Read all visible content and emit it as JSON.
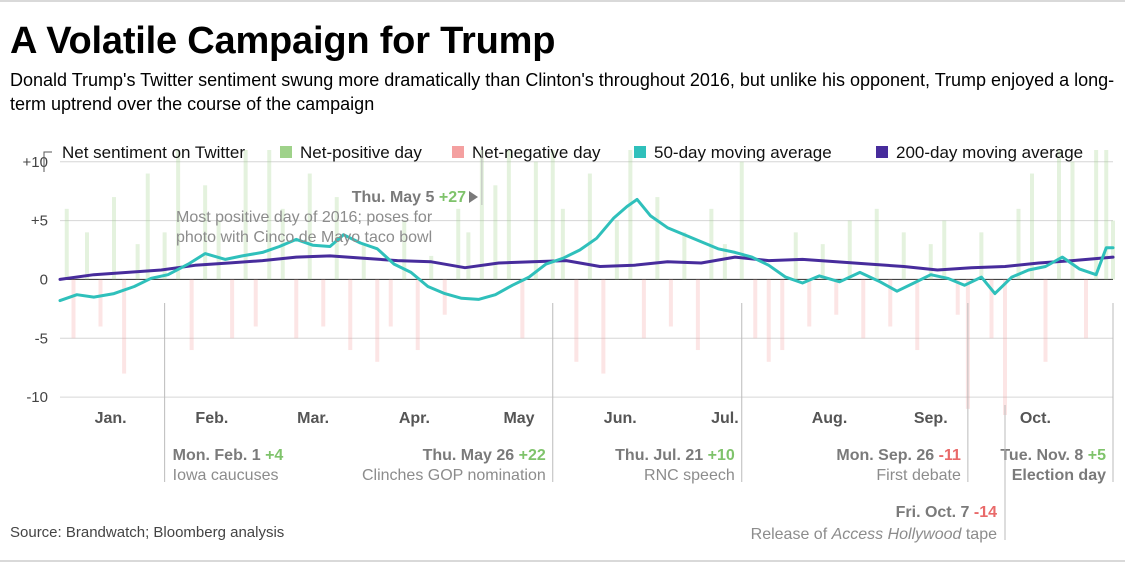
{
  "header": {
    "title": "A Volatile Campaign for Trump",
    "subtitle": "Donald Trump's Twitter sentiment swung more dramatically than Clinton's throughout 2016, but unlike his opponent, Trump enjoyed a long-term uptrend over the course of the campaign"
  },
  "footer": {
    "source": "Source: Brandwatch; Bloomberg analysis"
  },
  "legend": {
    "placement": "top",
    "items": [
      {
        "key": "net",
        "label": "Net sentiment on Twitter",
        "color": "#000000",
        "style": "bracket"
      },
      {
        "key": "pos",
        "label": "Net-positive day",
        "color": "#9fd28a",
        "style": "square"
      },
      {
        "key": "neg",
        "label": "Net-negative day",
        "color": "#f4a0a0",
        "style": "square"
      },
      {
        "key": "ma50",
        "label": "50-day moving average",
        "color": "#2fc0bb",
        "style": "square"
      },
      {
        "key": "ma200",
        "label": "200-day moving average",
        "color": "#472c9c",
        "style": "square"
      }
    ]
  },
  "chart_data": {
    "type": "bar",
    "overlay_type": "line",
    "x_start": "2016-01-01",
    "x_end": "2016-11-08",
    "ylim": [
      -10.5,
      11
    ],
    "yticks": [
      {
        "value": 10,
        "label": "+10"
      },
      {
        "value": 5,
        "label": "+5"
      },
      {
        "value": 0,
        "label": "0"
      },
      {
        "value": -5,
        "label": "-5"
      },
      {
        "value": -10,
        "label": "-10"
      }
    ],
    "grid": true,
    "month_labels": [
      {
        "label": "Jan.",
        "date": "2016-01-16"
      },
      {
        "label": "Feb.",
        "date": "2016-02-15"
      },
      {
        "label": "Mar.",
        "date": "2016-03-16"
      },
      {
        "label": "Apr.",
        "date": "2016-04-15"
      },
      {
        "label": "May",
        "date": "2016-05-16"
      },
      {
        "label": "Jun.",
        "date": "2016-06-15"
      },
      {
        "label": "Jul.",
        "date": "2016-07-16"
      },
      {
        "label": "Aug.",
        "date": "2016-08-16"
      },
      {
        "label": "Sep.",
        "date": "2016-09-15"
      },
      {
        "label": "Oct.",
        "date": "2016-10-16"
      }
    ],
    "colors": {
      "positive": "#9fd28a",
      "negative": "#f4a0a0",
      "ma50": "#2fc0bb",
      "ma200": "#472c9c",
      "annotation_value_pos": "#7fc36b",
      "annotation_value_neg": "#e96a6a"
    },
    "bar_opacity": 0.28,
    "daily_sample": [
      {
        "date": "2016-01-03",
        "value": 6
      },
      {
        "date": "2016-01-05",
        "value": -5
      },
      {
        "date": "2016-01-09",
        "value": 4
      },
      {
        "date": "2016-01-13",
        "value": -4
      },
      {
        "date": "2016-01-17",
        "value": 7
      },
      {
        "date": "2016-01-20",
        "value": -8
      },
      {
        "date": "2016-01-24",
        "value": 3
      },
      {
        "date": "2016-01-27",
        "value": 9
      },
      {
        "date": "2016-02-01",
        "value": 4
      },
      {
        "date": "2016-02-05",
        "value": 13
      },
      {
        "date": "2016-02-09",
        "value": -6
      },
      {
        "date": "2016-02-13",
        "value": 8
      },
      {
        "date": "2016-02-17",
        "value": 5
      },
      {
        "date": "2016-02-21",
        "value": -5
      },
      {
        "date": "2016-02-25",
        "value": 14
      },
      {
        "date": "2016-02-28",
        "value": -4
      },
      {
        "date": "2016-03-03",
        "value": 12
      },
      {
        "date": "2016-03-07",
        "value": 6
      },
      {
        "date": "2016-03-11",
        "value": -5
      },
      {
        "date": "2016-03-15",
        "value": 9
      },
      {
        "date": "2016-03-19",
        "value": -4
      },
      {
        "date": "2016-03-23",
        "value": 7
      },
      {
        "date": "2016-03-27",
        "value": -6
      },
      {
        "date": "2016-03-31",
        "value": 3
      },
      {
        "date": "2016-04-04",
        "value": -7
      },
      {
        "date": "2016-04-08",
        "value": -4
      },
      {
        "date": "2016-04-12",
        "value": 5
      },
      {
        "date": "2016-04-16",
        "value": -6
      },
      {
        "date": "2016-04-20",
        "value": 2
      },
      {
        "date": "2016-04-24",
        "value": -3
      },
      {
        "date": "2016-04-28",
        "value": 6
      },
      {
        "date": "2016-05-01",
        "value": 4
      },
      {
        "date": "2016-05-05",
        "value": 27
      },
      {
        "date": "2016-05-09",
        "value": 8
      },
      {
        "date": "2016-05-13",
        "value": 12
      },
      {
        "date": "2016-05-17",
        "value": -5
      },
      {
        "date": "2016-05-21",
        "value": 10
      },
      {
        "date": "2016-05-26",
        "value": 22
      },
      {
        "date": "2016-05-29",
        "value": 6
      },
      {
        "date": "2016-06-02",
        "value": -7
      },
      {
        "date": "2016-06-06",
        "value": 9
      },
      {
        "date": "2016-06-10",
        "value": -8
      },
      {
        "date": "2016-06-14",
        "value": 5
      },
      {
        "date": "2016-06-18",
        "value": 11
      },
      {
        "date": "2016-06-22",
        "value": -5
      },
      {
        "date": "2016-06-26",
        "value": 7
      },
      {
        "date": "2016-06-30",
        "value": -4
      },
      {
        "date": "2016-07-04",
        "value": 4
      },
      {
        "date": "2016-07-08",
        "value": -6
      },
      {
        "date": "2016-07-12",
        "value": 6
      },
      {
        "date": "2016-07-16",
        "value": 3
      },
      {
        "date": "2016-07-21",
        "value": 10
      },
      {
        "date": "2016-07-25",
        "value": -5
      },
      {
        "date": "2016-07-29",
        "value": -7
      },
      {
        "date": "2016-08-02",
        "value": -6
      },
      {
        "date": "2016-08-06",
        "value": 4
      },
      {
        "date": "2016-08-10",
        "value": -4
      },
      {
        "date": "2016-08-14",
        "value": 3
      },
      {
        "date": "2016-08-18",
        "value": -3
      },
      {
        "date": "2016-08-22",
        "value": 5
      },
      {
        "date": "2016-08-26",
        "value": -5
      },
      {
        "date": "2016-08-30",
        "value": 6
      },
      {
        "date": "2016-09-03",
        "value": -4
      },
      {
        "date": "2016-09-07",
        "value": 4
      },
      {
        "date": "2016-09-11",
        "value": -6
      },
      {
        "date": "2016-09-15",
        "value": 3
      },
      {
        "date": "2016-09-19",
        "value": 5
      },
      {
        "date": "2016-09-23",
        "value": -3
      },
      {
        "date": "2016-09-26",
        "value": -11
      },
      {
        "date": "2016-09-30",
        "value": 4
      },
      {
        "date": "2016-10-03",
        "value": -5
      },
      {
        "date": "2016-10-07",
        "value": -14
      },
      {
        "date": "2016-10-11",
        "value": 6
      },
      {
        "date": "2016-10-15",
        "value": 9
      },
      {
        "date": "2016-10-19",
        "value": -7
      },
      {
        "date": "2016-10-23",
        "value": 12
      },
      {
        "date": "2016-10-27",
        "value": 10
      },
      {
        "date": "2016-10-31",
        "value": -5
      },
      {
        "date": "2016-11-03",
        "value": 14
      },
      {
        "date": "2016-11-06",
        "value": 15
      },
      {
        "date": "2016-11-08",
        "value": 5
      }
    ],
    "ma50": [
      {
        "date": "2016-01-01",
        "value": -1.8
      },
      {
        "date": "2016-01-06",
        "value": -1.3
      },
      {
        "date": "2016-01-11",
        "value": -1.5
      },
      {
        "date": "2016-01-17",
        "value": -1.2
      },
      {
        "date": "2016-01-23",
        "value": -0.6
      },
      {
        "date": "2016-01-28",
        "value": 0.1
      },
      {
        "date": "2016-02-02",
        "value": 0.4
      },
      {
        "date": "2016-02-08",
        "value": 1.3
      },
      {
        "date": "2016-02-13",
        "value": 2.2
      },
      {
        "date": "2016-02-19",
        "value": 1.7
      },
      {
        "date": "2016-02-24",
        "value": 2.0
      },
      {
        "date": "2016-03-01",
        "value": 2.3
      },
      {
        "date": "2016-03-06",
        "value": 2.8
      },
      {
        "date": "2016-03-11",
        "value": 3.4
      },
      {
        "date": "2016-03-16",
        "value": 2.9
      },
      {
        "date": "2016-03-21",
        "value": 2.8
      },
      {
        "date": "2016-03-25",
        "value": 3.8
      },
      {
        "date": "2016-03-30",
        "value": 3.1
      },
      {
        "date": "2016-04-04",
        "value": 2.6
      },
      {
        "date": "2016-04-09",
        "value": 1.3
      },
      {
        "date": "2016-04-14",
        "value": 0.6
      },
      {
        "date": "2016-04-19",
        "value": -0.6
      },
      {
        "date": "2016-04-24",
        "value": -1.2
      },
      {
        "date": "2016-04-29",
        "value": -1.6
      },
      {
        "date": "2016-05-04",
        "value": -1.7
      },
      {
        "date": "2016-05-09",
        "value": -1.3
      },
      {
        "date": "2016-05-14",
        "value": -0.5
      },
      {
        "date": "2016-05-19",
        "value": 0.2
      },
      {
        "date": "2016-05-24",
        "value": 1.3
      },
      {
        "date": "2016-05-29",
        "value": 1.8
      },
      {
        "date": "2016-06-03",
        "value": 2.5
      },
      {
        "date": "2016-06-08",
        "value": 3.5
      },
      {
        "date": "2016-06-13",
        "value": 5.2
      },
      {
        "date": "2016-06-17",
        "value": 6.2
      },
      {
        "date": "2016-06-20",
        "value": 6.8
      },
      {
        "date": "2016-06-24",
        "value": 5.4
      },
      {
        "date": "2016-06-29",
        "value": 4.4
      },
      {
        "date": "2016-07-04",
        "value": 3.8
      },
      {
        "date": "2016-07-09",
        "value": 3.2
      },
      {
        "date": "2016-07-14",
        "value": 2.6
      },
      {
        "date": "2016-07-19",
        "value": 2.3
      },
      {
        "date": "2016-07-24",
        "value": 1.9
      },
      {
        "date": "2016-07-29",
        "value": 1.2
      },
      {
        "date": "2016-08-03",
        "value": 0.2
      },
      {
        "date": "2016-08-08",
        "value": -0.3
      },
      {
        "date": "2016-08-13",
        "value": 0.3
      },
      {
        "date": "2016-08-19",
        "value": -0.2
      },
      {
        "date": "2016-08-25",
        "value": 0.6
      },
      {
        "date": "2016-08-31",
        "value": -0.2
      },
      {
        "date": "2016-09-05",
        "value": -1.0
      },
      {
        "date": "2016-09-10",
        "value": -0.3
      },
      {
        "date": "2016-09-15",
        "value": 0.4
      },
      {
        "date": "2016-09-20",
        "value": 0.1
      },
      {
        "date": "2016-09-25",
        "value": -0.5
      },
      {
        "date": "2016-09-30",
        "value": 0.2
      },
      {
        "date": "2016-10-04",
        "value": -1.2
      },
      {
        "date": "2016-10-09",
        "value": 0.2
      },
      {
        "date": "2016-10-14",
        "value": 0.8
      },
      {
        "date": "2016-10-19",
        "value": 1.1
      },
      {
        "date": "2016-10-24",
        "value": 1.9
      },
      {
        "date": "2016-10-29",
        "value": 0.9
      },
      {
        "date": "2016-11-03",
        "value": 0.4
      },
      {
        "date": "2016-11-06",
        "value": 2.7
      },
      {
        "date": "2016-11-08",
        "value": 2.7
      }
    ],
    "ma200": [
      {
        "date": "2016-01-01",
        "value": 0.0
      },
      {
        "date": "2016-01-11",
        "value": 0.4
      },
      {
        "date": "2016-01-21",
        "value": 0.6
      },
      {
        "date": "2016-01-31",
        "value": 0.8
      },
      {
        "date": "2016-02-10",
        "value": 1.2
      },
      {
        "date": "2016-02-20",
        "value": 1.4
      },
      {
        "date": "2016-03-01",
        "value": 1.6
      },
      {
        "date": "2016-03-11",
        "value": 1.9
      },
      {
        "date": "2016-03-21",
        "value": 2.0
      },
      {
        "date": "2016-03-31",
        "value": 1.8
      },
      {
        "date": "2016-04-10",
        "value": 1.6
      },
      {
        "date": "2016-04-20",
        "value": 1.5
      },
      {
        "date": "2016-04-30",
        "value": 1.0
      },
      {
        "date": "2016-05-10",
        "value": 1.4
      },
      {
        "date": "2016-05-20",
        "value": 1.5
      },
      {
        "date": "2016-05-30",
        "value": 1.6
      },
      {
        "date": "2016-06-09",
        "value": 1.1
      },
      {
        "date": "2016-06-19",
        "value": 1.2
      },
      {
        "date": "2016-06-29",
        "value": 1.5
      },
      {
        "date": "2016-07-09",
        "value": 1.4
      },
      {
        "date": "2016-07-19",
        "value": 1.9
      },
      {
        "date": "2016-07-29",
        "value": 1.6
      },
      {
        "date": "2016-08-08",
        "value": 1.7
      },
      {
        "date": "2016-08-18",
        "value": 1.5
      },
      {
        "date": "2016-08-28",
        "value": 1.3
      },
      {
        "date": "2016-09-07",
        "value": 1.1
      },
      {
        "date": "2016-09-17",
        "value": 0.8
      },
      {
        "date": "2016-09-27",
        "value": 1.0
      },
      {
        "date": "2016-10-07",
        "value": 1.1
      },
      {
        "date": "2016-10-17",
        "value": 1.4
      },
      {
        "date": "2016-10-27",
        "value": 1.6
      },
      {
        "date": "2016-11-08",
        "value": 1.9
      }
    ],
    "annotations": [
      {
        "id": "may5",
        "date": "2016-05-05",
        "value": 27,
        "date_label": "Thu. May 5",
        "value_label": "+27",
        "text": [
          "Most positive day of 2016; poses for",
          "photo with Cinco de Mayo taco bowl"
        ],
        "position": "top"
      },
      {
        "id": "feb1",
        "date": "2016-02-01",
        "value": 4,
        "date_label": "Mon. Feb. 1",
        "value_label": "+4",
        "text": [
          "Iowa caucuses"
        ],
        "position": "bottom"
      },
      {
        "id": "may26",
        "date": "2016-05-26",
        "value": 22,
        "date_label": "Thu. May 26",
        "value_label": "+22",
        "text": [
          "Clinches GOP nomination"
        ],
        "position": "bottom"
      },
      {
        "id": "jul21",
        "date": "2016-07-21",
        "value": 10,
        "date_label": "Thu. Jul. 21",
        "value_label": "+10",
        "text": [
          "RNC speech"
        ],
        "position": "bottom"
      },
      {
        "id": "sep26",
        "date": "2016-09-26",
        "value": -11,
        "date_label": "Mon. Sep. 26",
        "value_label": "-11",
        "text": [
          "First debate"
        ],
        "position": "bottom"
      },
      {
        "id": "nov8",
        "date": "2016-11-08",
        "value": 5,
        "date_label": "Tue. Nov. 8",
        "value_label": "+5",
        "text": [
          "Election day"
        ],
        "position": "bottom"
      },
      {
        "id": "oct7",
        "date": "2016-10-07",
        "value": -14,
        "date_label": "Fri. Oct. 7",
        "value_label": "-14",
        "text_parts": [
          "Release of ",
          "Access Hollywood",
          " tape"
        ],
        "position": "bottom-low"
      }
    ]
  }
}
